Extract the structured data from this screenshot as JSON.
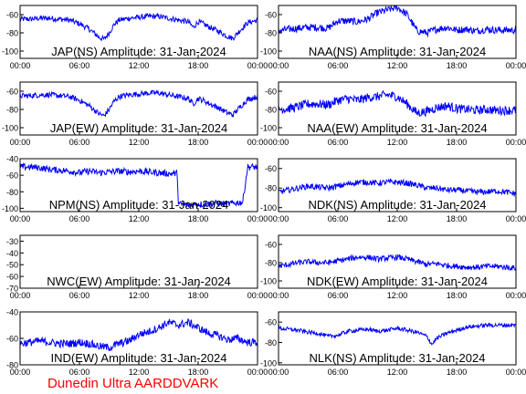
{
  "footer": "Dunedin Ultra AARDDVARK",
  "colors": {
    "trace": "#0000ff",
    "axis": "#000000",
    "footer": "#ff0000"
  },
  "x_tick_labels": [
    "00:00",
    "06:00",
    "12:00",
    "18:00",
    "00:00"
  ],
  "chart_data": [
    {
      "type": "line",
      "title": "JAP(NS) Amplitude: 31-Jan-2024",
      "x_hours": [
        0,
        1,
        2,
        3,
        4,
        5,
        6,
        7,
        8,
        8.5,
        9,
        9.5,
        10,
        11,
        12,
        13,
        14,
        15,
        16,
        17,
        17.5,
        18,
        18.5,
        19,
        20,
        21,
        21.5,
        22,
        23,
        24
      ],
      "values": [
        -65,
        -65,
        -64,
        -64,
        -65,
        -66,
        -70,
        -76,
        -85,
        -87,
        -80,
        -71,
        -66,
        -64,
        -63,
        -62,
        -62,
        -64,
        -66,
        -68,
        -74,
        -68,
        -70,
        -73,
        -78,
        -84,
        -86,
        -80,
        -69,
        -66
      ],
      "band": 3,
      "ylim": [
        -108,
        -50
      ],
      "yticks": [
        -60,
        -80,
        -100
      ],
      "ytick_labels": [
        "-60",
        "-80",
        "-100"
      ]
    },
    {
      "type": "line",
      "title": "NAA(NS) Amplitude: 31-Jan-2024",
      "x_hours": [
        0,
        1,
        2,
        3,
        4,
        5,
        6,
        7,
        8,
        9,
        10,
        11,
        12,
        13,
        14,
        15,
        16,
        17,
        18,
        19,
        20,
        21,
        22,
        23,
        24
      ],
      "values": [
        -78,
        -76,
        -75,
        -74,
        -74,
        -75,
        -67,
        -67,
        -68,
        -65,
        -58,
        -55,
        -52,
        -60,
        -78,
        -80,
        -76,
        -74,
        -77,
        -76,
        -78,
        -76,
        -77,
        -77,
        -77
      ],
      "band": 4,
      "ylim": [
        -108,
        -50
      ],
      "yticks": [
        -60,
        -80,
        -100
      ],
      "ytick_labels": [
        "-60",
        "-80",
        "-100"
      ]
    },
    {
      "type": "line",
      "title": "JAP(EW) Amplitude: 31-Jan-2024",
      "x_hours": [
        0,
        1,
        2,
        3,
        4,
        5,
        6,
        7,
        8,
        8.5,
        9,
        9.5,
        10,
        11,
        12,
        13,
        14,
        15,
        16,
        17,
        17.5,
        18,
        18.5,
        19,
        20,
        21,
        21.5,
        22,
        23,
        24
      ],
      "values": [
        -65,
        -65,
        -64,
        -64,
        -65,
        -66,
        -70,
        -76,
        -85,
        -87,
        -80,
        -71,
        -66,
        -64,
        -63,
        -62,
        -62,
        -64,
        -66,
        -68,
        -74,
        -68,
        -70,
        -73,
        -78,
        -84,
        -86,
        -80,
        -69,
        -66
      ],
      "band": 3,
      "ylim": [
        -108,
        -50
      ],
      "yticks": [
        -60,
        -80,
        -100
      ],
      "ytick_labels": [
        "-60",
        "-80",
        "-100"
      ]
    },
    {
      "type": "line",
      "title": "NAA(EW) Amplitude: 31-Jan-2024",
      "x_hours": [
        0,
        1,
        2,
        3,
        4,
        5,
        6,
        7,
        8,
        9,
        10,
        11,
        12,
        13,
        14,
        15,
        16,
        17,
        18,
        19,
        20,
        21,
        22,
        23,
        24
      ],
      "values": [
        -80,
        -79,
        -77,
        -74,
        -74,
        -75,
        -70,
        -68,
        -70,
        -67,
        -66,
        -64,
        -66,
        -74,
        -84,
        -82,
        -78,
        -76,
        -79,
        -80,
        -81,
        -80,
        -81,
        -81,
        -81
      ],
      "band": 5,
      "ylim": [
        -108,
        -50
      ],
      "yticks": [
        -60,
        -80,
        -100
      ],
      "ytick_labels": [
        "-60",
        "-80",
        "-100"
      ]
    },
    {
      "type": "line",
      "title": "NPM(NS) Amplitude: 31-Jan-2024",
      "x_hours": [
        0,
        1,
        2,
        3,
        4,
        5,
        6,
        7,
        8,
        9,
        10,
        11,
        12,
        13,
        14,
        15,
        15.9,
        16.0,
        17,
        18,
        19,
        20,
        21,
        22,
        22.5,
        23,
        24
      ],
      "values": [
        -50,
        -50,
        -51,
        -53,
        -54,
        -55,
        -57,
        -55,
        -57,
        -56,
        -55,
        -56,
        -55,
        -56,
        -57,
        -58,
        -58,
        -95,
        -96,
        -95,
        -95,
        -94,
        -95,
        -93,
        -93,
        -50,
        -50
      ],
      "band": 4,
      "ylim": [
        -104,
        -40
      ],
      "yticks": [
        -40,
        -60,
        -80,
        -100
      ],
      "ytick_labels": [
        "-40",
        "-60",
        "-80",
        "-100"
      ]
    },
    {
      "type": "line",
      "title": "NDK(NS) Amplitude: 31-Jan-2024",
      "x_hours": [
        0,
        1,
        2,
        3,
        4,
        5,
        6,
        7,
        8,
        9,
        10,
        11,
        12,
        13,
        14,
        15,
        16,
        17,
        18,
        19,
        20,
        21,
        22,
        23,
        24
      ],
      "values": [
        -84,
        -82,
        -80,
        -78,
        -79,
        -80,
        -78,
        -76,
        -74,
        -74,
        -75,
        -74,
        -74,
        -75,
        -77,
        -80,
        -80,
        -82,
        -82,
        -83,
        -84,
        -84,
        -83,
        -84,
        -86
      ],
      "band": 3,
      "ylim": [
        -104,
        -50
      ],
      "yticks": [
        -60,
        -80,
        -100
      ],
      "ytick_labels": [
        "-60",
        "-80",
        "-100"
      ]
    },
    {
      "type": "line",
      "title": "NWC(EW) Amplitude: 31-Jan-2024",
      "x_hours": [
        0,
        24
      ],
      "values": [
        null,
        null
      ],
      "band": 0,
      "ylim": [
        -70,
        -25
      ],
      "yticks": [
        -30,
        -40,
        -50,
        -60,
        -70
      ],
      "ytick_labels": [
        "-30",
        "-40",
        "-50",
        "-60",
        "-70"
      ]
    },
    {
      "type": "line",
      "title": "NDK(EW) Amplitude: 31-Jan-2024",
      "x_hours": [
        0,
        1,
        2,
        3,
        4,
        5,
        6,
        7,
        8,
        9,
        10,
        11,
        12,
        13,
        14,
        15,
        16,
        17,
        18,
        19,
        20,
        21,
        22,
        23,
        24
      ],
      "values": [
        -84,
        -82,
        -80,
        -79,
        -80,
        -80,
        -78,
        -76,
        -74,
        -74,
        -76,
        -75,
        -74,
        -76,
        -79,
        -82,
        -81,
        -83,
        -84,
        -85,
        -85,
        -84,
        -84,
        -85,
        -86
      ],
      "band": 3,
      "ylim": [
        -108,
        -50
      ],
      "yticks": [
        -60,
        -80,
        -100
      ],
      "ytick_labels": [
        "-60",
        "-80",
        "-100"
      ]
    },
    {
      "type": "line",
      "title": "IND(EW) Amplitude: 31-Jan-2024",
      "x_hours": [
        0,
        1,
        2,
        3,
        4,
        5,
        6,
        7,
        8,
        9,
        10,
        11,
        12,
        13,
        14,
        15,
        16,
        17,
        18,
        19,
        20,
        21,
        22,
        23,
        24
      ],
      "values": [
        -64,
        -63,
        -62,
        -63,
        -64,
        -64,
        -63,
        -64,
        -66,
        -67,
        -64,
        -62,
        -57,
        -55,
        -52,
        -48,
        -50,
        -48,
        -52,
        -56,
        -58,
        -61,
        -60,
        -63,
        -63
      ],
      "band": 3,
      "ylim": [
        -80,
        -40
      ],
      "yticks": [
        -40,
        -60,
        -80
      ],
      "ytick_labels": [
        "-40",
        "-60",
        "-80"
      ]
    },
    {
      "type": "line",
      "title": "NLK(NS) Amplitude: 31-Jan-2024",
      "x_hours": [
        0,
        1,
        2,
        3,
        4,
        5,
        6,
        7,
        8,
        9,
        10,
        11,
        12,
        13,
        14,
        15,
        15.5,
        16,
        17,
        18,
        19,
        20,
        21,
        22,
        23,
        24
      ],
      "values": [
        -66,
        -67,
        -68,
        -70,
        -71,
        -74,
        -73,
        -69,
        -68,
        -67,
        -69,
        -68,
        -66,
        -68,
        -70,
        -74,
        -82,
        -76,
        -71,
        -68,
        -65,
        -64,
        -63,
        -63,
        -63,
        -63
      ],
      "band": 2,
      "ylim": [
        -102,
        -50
      ],
      "yticks": [
        -60,
        -80,
        -100
      ],
      "ytick_labels": [
        "-60",
        "-80",
        "-100"
      ]
    }
  ]
}
